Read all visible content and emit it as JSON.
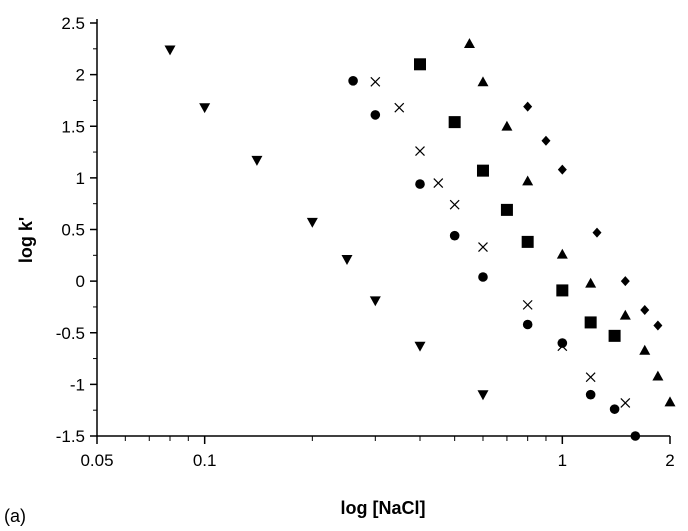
{
  "chart_data": {
    "type": "scatter",
    "panel_label": "(a)",
    "xlabel": "log [NaCl]",
    "ylabel": "log k'",
    "x_scale": "log",
    "xlim": [
      0.05,
      2
    ],
    "ylim": [
      -1.5,
      2.5
    ],
    "x_ticks": [
      0.05,
      0.1,
      1,
      2
    ],
    "x_tick_labels": [
      "0.05",
      "0.1",
      "1",
      "2"
    ],
    "y_ticks": [
      -1.5,
      -1,
      -0.5,
      0,
      0.5,
      1,
      1.5,
      2,
      2.5
    ],
    "y_tick_labels": [
      "-1.5",
      "-1",
      "-0.5",
      "0",
      "0.5",
      "1",
      "1.5",
      "2",
      "2.5"
    ],
    "grid": false,
    "legend": "none",
    "series": [
      {
        "marker": "triangle-down",
        "points": [
          {
            "x": 0.08,
            "y": 2.24
          },
          {
            "x": 0.1,
            "y": 1.68
          },
          {
            "x": 0.14,
            "y": 1.17
          },
          {
            "x": 0.2,
            "y": 0.57
          },
          {
            "x": 0.25,
            "y": 0.21
          },
          {
            "x": 0.3,
            "y": -0.19
          },
          {
            "x": 0.4,
            "y": -0.63
          },
          {
            "x": 0.6,
            "y": -1.1
          }
        ]
      },
      {
        "marker": "circle",
        "points": [
          {
            "x": 0.26,
            "y": 1.94
          },
          {
            "x": 0.3,
            "y": 1.61
          },
          {
            "x": 0.4,
            "y": 0.94
          },
          {
            "x": 0.5,
            "y": 0.44
          },
          {
            "x": 0.6,
            "y": 0.04
          },
          {
            "x": 0.8,
            "y": -0.42
          },
          {
            "x": 1.0,
            "y": -0.6
          },
          {
            "x": 1.2,
            "y": -1.1
          },
          {
            "x": 1.4,
            "y": -1.24
          },
          {
            "x": 1.6,
            "y": -1.5
          }
        ]
      },
      {
        "marker": "x",
        "points": [
          {
            "x": 0.3,
            "y": 1.93
          },
          {
            "x": 0.35,
            "y": 1.68
          },
          {
            "x": 0.4,
            "y": 1.26
          },
          {
            "x": 0.45,
            "y": 0.95
          },
          {
            "x": 0.5,
            "y": 0.74
          },
          {
            "x": 0.6,
            "y": 0.33
          },
          {
            "x": 0.8,
            "y": -0.23
          },
          {
            "x": 1.0,
            "y": -0.63
          },
          {
            "x": 1.2,
            "y": -0.93
          },
          {
            "x": 1.5,
            "y": -1.18
          }
        ]
      },
      {
        "marker": "square",
        "points": [
          {
            "x": 0.4,
            "y": 2.1
          },
          {
            "x": 0.5,
            "y": 1.54
          },
          {
            "x": 0.6,
            "y": 1.07
          },
          {
            "x": 0.7,
            "y": 0.69
          },
          {
            "x": 0.8,
            "y": 0.38
          },
          {
            "x": 1.0,
            "y": -0.09
          },
          {
            "x": 1.2,
            "y": -0.4
          },
          {
            "x": 1.4,
            "y": -0.53
          }
        ]
      },
      {
        "marker": "triangle-up",
        "points": [
          {
            "x": 0.55,
            "y": 2.3
          },
          {
            "x": 0.6,
            "y": 1.93
          },
          {
            "x": 0.7,
            "y": 1.5
          },
          {
            "x": 0.8,
            "y": 0.97
          },
          {
            "x": 1.0,
            "y": 0.26
          },
          {
            "x": 1.2,
            "y": -0.02
          },
          {
            "x": 1.5,
            "y": -0.33
          },
          {
            "x": 1.7,
            "y": -0.67
          },
          {
            "x": 1.85,
            "y": -0.92
          },
          {
            "x": 2.0,
            "y": -1.17
          }
        ]
      },
      {
        "marker": "diamond",
        "points": [
          {
            "x": 0.8,
            "y": 1.69
          },
          {
            "x": 0.9,
            "y": 1.36
          },
          {
            "x": 1.0,
            "y": 1.08
          },
          {
            "x": 1.25,
            "y": 0.47
          },
          {
            "x": 1.5,
            "y": 0.0
          },
          {
            "x": 1.7,
            "y": -0.28
          },
          {
            "x": 1.85,
            "y": -0.43
          }
        ]
      }
    ]
  }
}
